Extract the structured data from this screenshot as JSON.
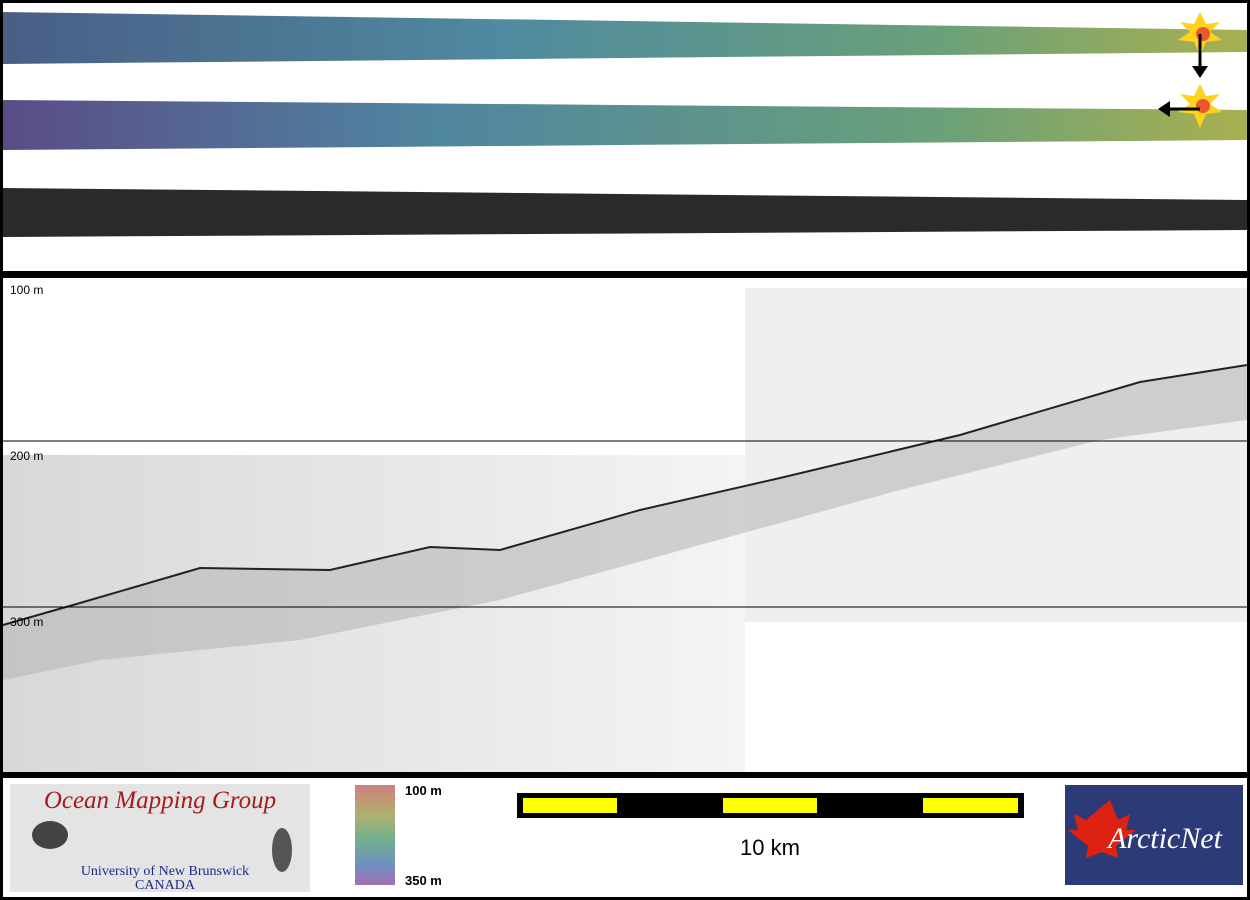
{
  "profile": {
    "depth_labels": [
      "100 m",
      "200 m",
      "300 m"
    ]
  },
  "footer": {
    "logo_title": "Ocean Mapping Group",
    "logo_university": "University of New Brunswick",
    "logo_country": "CANADA",
    "colorbar_top": "100 m",
    "colorbar_bottom": "350 m",
    "scale_label": "10 km",
    "partner_logo": "ArcticNet"
  }
}
